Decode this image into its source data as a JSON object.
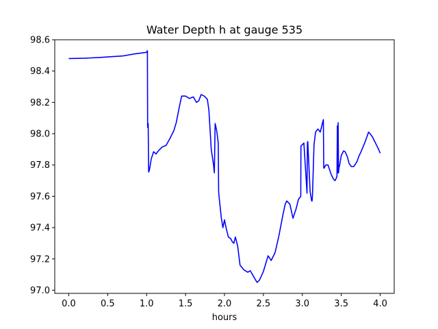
{
  "chart_data": {
    "type": "line",
    "title": "Water Depth h at gauge 535",
    "xlabel": "hours",
    "ylabel": "",
    "xlim": [
      -0.18,
      4.18
    ],
    "ylim": [
      96.98,
      98.6
    ],
    "xticks": [
      0.0,
      0.5,
      1.0,
      1.5,
      2.0,
      2.5,
      3.0,
      3.5,
      4.0
    ],
    "xtick_labels": [
      "0.0",
      "0.5",
      "1.0",
      "1.5",
      "2.0",
      "2.5",
      "3.0",
      "3.5",
      "4.0"
    ],
    "yticks": [
      97.0,
      97.2,
      97.4,
      97.6,
      97.8,
      98.0,
      98.2,
      98.4,
      98.6
    ],
    "ytick_labels": [
      "97.0",
      "97.2",
      "97.4",
      "97.6",
      "97.8",
      "98.0",
      "98.2",
      "98.4",
      "98.6"
    ],
    "grid": false,
    "series": [
      {
        "color": "#0000ff",
        "x": [
          0.0,
          0.2,
          0.4,
          0.65,
          0.7,
          0.85,
          1.0,
          1.01,
          1.013,
          1.02,
          1.026,
          1.03,
          1.035,
          1.06,
          1.09,
          1.12,
          1.15,
          1.2,
          1.25,
          1.3,
          1.35,
          1.38,
          1.42,
          1.45,
          1.5,
          1.55,
          1.6,
          1.64,
          1.67,
          1.7,
          1.74,
          1.78,
          1.8,
          1.83,
          1.86,
          1.87,
          1.88,
          1.9,
          1.92,
          1.925,
          1.93,
          1.96,
          1.98,
          2.0,
          2.02,
          2.05,
          2.08,
          2.1,
          2.12,
          2.14,
          2.17,
          2.2,
          2.25,
          2.3,
          2.33,
          2.36,
          2.4,
          2.42,
          2.45,
          2.5,
          2.53,
          2.56,
          2.6,
          2.65,
          2.7,
          2.75,
          2.78,
          2.8,
          2.84,
          2.88,
          2.92,
          2.95,
          2.98,
          2.982,
          3.0,
          3.02,
          3.06,
          3.065,
          3.07,
          3.1,
          3.12,
          3.125,
          3.13,
          3.15,
          3.17,
          3.2,
          3.23,
          3.27,
          3.275,
          3.28,
          3.3,
          3.33,
          3.37,
          3.4,
          3.42,
          3.44,
          3.445,
          3.45,
          3.455,
          3.46,
          3.465,
          3.47,
          3.48,
          3.5,
          3.53,
          3.55,
          3.58,
          3.6,
          3.63,
          3.66,
          3.7,
          3.73,
          3.75,
          3.8,
          3.83,
          3.85,
          3.87,
          3.9,
          3.93,
          3.96,
          3.98,
          4.0
        ],
        "y": [
          98.48,
          98.482,
          98.487,
          98.495,
          98.497,
          98.51,
          98.52,
          98.53,
          98.04,
          98.065,
          97.755,
          97.76,
          97.765,
          97.84,
          97.885,
          97.87,
          97.89,
          97.915,
          97.925,
          97.97,
          98.02,
          98.07,
          98.17,
          98.24,
          98.24,
          98.225,
          98.235,
          98.2,
          98.21,
          98.25,
          98.24,
          98.22,
          98.15,
          97.9,
          97.8,
          97.75,
          98.065,
          98.02,
          97.94,
          97.63,
          97.6,
          97.46,
          97.4,
          97.45,
          97.4,
          97.34,
          97.33,
          97.31,
          97.3,
          97.34,
          97.28,
          97.16,
          97.13,
          97.115,
          97.125,
          97.1,
          97.065,
          97.05,
          97.065,
          97.12,
          97.17,
          97.22,
          97.19,
          97.24,
          97.35,
          97.48,
          97.55,
          97.57,
          97.55,
          97.46,
          97.52,
          97.58,
          97.6,
          97.92,
          97.93,
          97.94,
          97.62,
          97.94,
          97.95,
          97.63,
          97.57,
          97.57,
          97.6,
          97.93,
          98.01,
          98.03,
          98.01,
          98.09,
          97.78,
          97.78,
          97.8,
          97.8,
          97.74,
          97.71,
          97.7,
          97.72,
          97.73,
          98.05,
          97.75,
          98.07,
          97.75,
          97.78,
          97.8,
          97.86,
          97.89,
          97.885,
          97.85,
          97.81,
          97.79,
          97.79,
          97.82,
          97.86,
          97.88,
          97.94,
          97.98,
          98.01,
          98.0,
          97.98,
          97.95,
          97.92,
          97.9,
          97.875
        ]
      }
    ]
  }
}
